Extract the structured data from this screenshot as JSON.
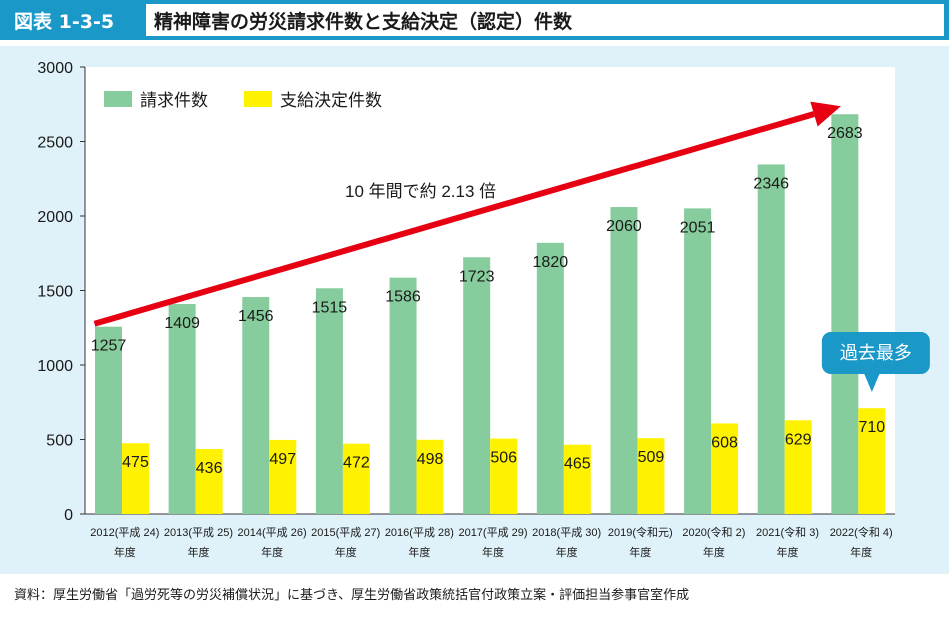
{
  "header": {
    "figure_label": "図表 1-3-5",
    "title": "精神障害の労災請求件数と支給決定（認定）件数"
  },
  "source_note": "資料：厚生労働省「過労死等の労災補償状況」に基づき、厚生労働省政策統括官付政策立案・評価担当参事官室作成",
  "colors": {
    "header_bg": "#1a98c8",
    "panel_bg": "#dff1f9",
    "claims": "#86cc9c",
    "approvals": "#fff200",
    "trend_arrow": "#e60012",
    "callout": "#1a98c8"
  },
  "chart_data": {
    "type": "bar",
    "ylim": [
      0,
      3000
    ],
    "y_ticks": [
      0,
      500,
      1000,
      1500,
      2000,
      2500,
      3000
    ],
    "legend_position": "top-left",
    "categories": [
      {
        "line1": "2012(平成 24)",
        "line2": "年度"
      },
      {
        "line1": "2013(平成 25)",
        "line2": "年度"
      },
      {
        "line1": "2014(平成 26)",
        "line2": "年度"
      },
      {
        "line1": "2015(平成 27)",
        "line2": "年度"
      },
      {
        "line1": "2016(平成 28)",
        "line2": "年度"
      },
      {
        "line1": "2017(平成 29)",
        "line2": "年度"
      },
      {
        "line1": "2018(平成 30)",
        "line2": "年度"
      },
      {
        "line1": "2019(令和元)",
        "line2": "年度"
      },
      {
        "line1": "2020(令和 2)",
        "line2": "年度"
      },
      {
        "line1": "2021(令和 3)",
        "line2": "年度"
      },
      {
        "line1": "2022(令和 4)",
        "line2": "年度"
      }
    ],
    "series": [
      {
        "name": "請求件数",
        "values": [
          1257,
          1409,
          1456,
          1515,
          1586,
          1723,
          1820,
          2060,
          2051,
          2346,
          2683
        ]
      },
      {
        "name": "支給決定件数",
        "values": [
          475,
          436,
          497,
          472,
          498,
          506,
          465,
          509,
          608,
          629,
          710
        ]
      }
    ],
    "annotations": {
      "trend_label": "10 年間で約 2.13 倍",
      "callout": "過去最多"
    }
  }
}
